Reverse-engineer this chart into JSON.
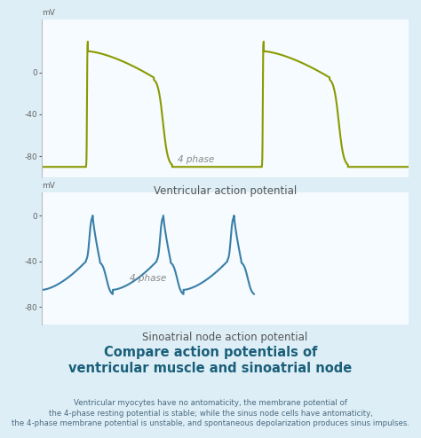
{
  "fig_width": 4.74,
  "fig_height": 4.94,
  "bg_top": "#ddeef6",
  "bg_bottom": "#e8f4f0",
  "panel_bg": "#f5fbfe",
  "bottom_bg": "#e8f4f8",
  "ventricular_color": "#8a9a00",
  "sinoatrial_color": "#3a7fa8",
  "ventricular_title": "Ventricular action potential",
  "sinoatrial_title": "Sinoatrial node action potential",
  "compare_title": "Compare action potentials of\nventricular muscle and sinoatrial node",
  "compare_body": "Ventricular myocytes have no antomaticity, the membrane potential of\nthe 4-phase resting potential is stable; while the sinus node cells have antomaticity,\nthe 4-phase membrane potential is unstable, and spontaneous depolarization produces sinus impulses.",
  "yticks": [
    -80,
    -40,
    0
  ],
  "ylabel": "mV",
  "phase_label": "4 phase",
  "title_fontsize": 8.5,
  "axis_fontsize": 6.5,
  "compare_title_fontsize": 10.5,
  "compare_body_fontsize": 6.2
}
